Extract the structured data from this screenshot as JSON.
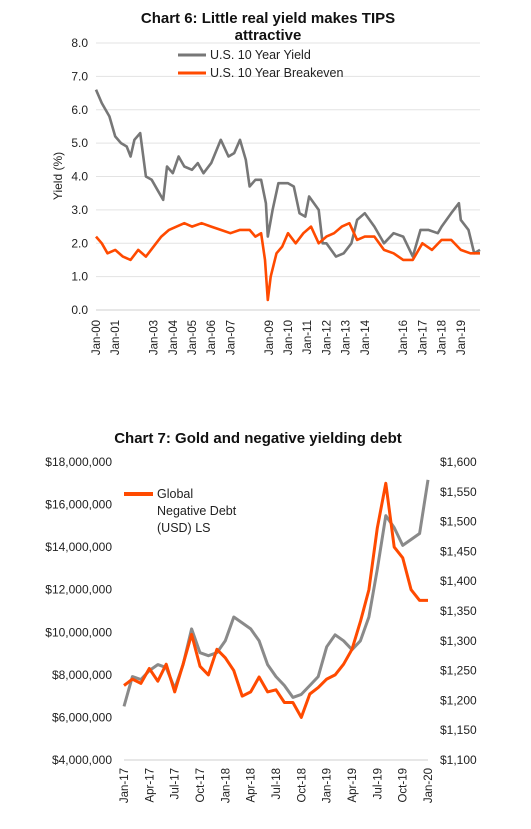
{
  "chart_data": [
    {
      "type": "line",
      "title": "Chart 6: Little real yield makes TIPS attractive",
      "title_lines": [
        "Chart 6: Little real yield makes TIPS",
        "attractive"
      ],
      "ylabel": "Yield (%)",
      "ylim": [
        0,
        8
      ],
      "yticks": [
        "0.0",
        "1.0",
        "2.0",
        "3.0",
        "4.0",
        "5.0",
        "6.0",
        "7.0",
        "8.0"
      ],
      "xlim": [
        2000.0,
        2020.0
      ],
      "xticks": [
        "Jan-00",
        "Jan-01",
        "Jan-03",
        "Jan-04",
        "Jan-05",
        "Jan-06",
        "Jan-07",
        "Jan-09",
        "Jan-10",
        "Jan-11",
        "Jan-12",
        "Jan-13",
        "Jan-14",
        "Jan-16",
        "Jan-17",
        "Jan-18",
        "Jan-19"
      ],
      "xtick_years": [
        2000,
        2001,
        2003,
        2004,
        2005,
        2006,
        2007,
        2009,
        2010,
        2011,
        2012,
        2013,
        2014,
        2016,
        2017,
        2018,
        2019
      ],
      "legend_position": "top-center",
      "grid": "horizontal",
      "series": [
        {
          "name": "U.S. 10 Year Yield",
          "color": "#777777",
          "x": [
            2000.0,
            2000.3,
            2000.7,
            2001.0,
            2001.3,
            2001.6,
            2001.8,
            2002.0,
            2002.3,
            2002.6,
            2002.9,
            2003.2,
            2003.5,
            2003.7,
            2004.0,
            2004.3,
            2004.6,
            2005.0,
            2005.3,
            2005.6,
            2006.0,
            2006.5,
            2006.9,
            2007.2,
            2007.5,
            2007.8,
            2008.0,
            2008.3,
            2008.6,
            2008.85,
            2008.95,
            2009.2,
            2009.5,
            2010.0,
            2010.3,
            2010.6,
            2010.9,
            2011.1,
            2011.6,
            2011.8,
            2012.0,
            2012.5,
            2012.9,
            2013.3,
            2013.6,
            2014.0,
            2014.5,
            2015.0,
            2015.5,
            2016.0,
            2016.5,
            2016.9,
            2017.3,
            2017.8,
            2018.0,
            2018.5,
            2018.9,
            2019.0,
            2019.4,
            2019.7,
            2020.0
          ],
          "y": [
            6.6,
            6.2,
            5.8,
            5.2,
            5.0,
            4.9,
            4.6,
            5.1,
            5.3,
            4.0,
            3.9,
            3.6,
            3.3,
            4.3,
            4.1,
            4.6,
            4.3,
            4.2,
            4.4,
            4.1,
            4.4,
            5.1,
            4.6,
            4.7,
            5.1,
            4.5,
            3.7,
            3.9,
            3.9,
            3.2,
            2.2,
            3.0,
            3.8,
            3.8,
            3.7,
            2.9,
            2.8,
            3.4,
            3.0,
            2.0,
            2.0,
            1.6,
            1.7,
            2.0,
            2.7,
            2.9,
            2.5,
            2.0,
            2.3,
            2.2,
            1.6,
            2.4,
            2.4,
            2.3,
            2.5,
            2.9,
            3.2,
            2.7,
            2.4,
            1.7,
            1.8
          ]
        },
        {
          "name": "U.S. 10 Year Breakeven",
          "color": "#ff4a00",
          "x": [
            2000.0,
            2000.3,
            2000.6,
            2001.0,
            2001.4,
            2001.8,
            2002.2,
            2002.6,
            2003.0,
            2003.4,
            2003.8,
            2004.2,
            2004.6,
            2005.0,
            2005.5,
            2006.0,
            2006.5,
            2007.0,
            2007.5,
            2008.0,
            2008.3,
            2008.6,
            2008.8,
            2008.95,
            2009.1,
            2009.4,
            2009.7,
            2010.0,
            2010.4,
            2010.8,
            2011.2,
            2011.6,
            2012.0,
            2012.4,
            2012.8,
            2013.2,
            2013.6,
            2014.0,
            2014.5,
            2015.0,
            2015.5,
            2016.0,
            2016.5,
            2017.0,
            2017.5,
            2018.0,
            2018.5,
            2019.0,
            2019.5,
            2020.0
          ],
          "y": [
            2.2,
            2.0,
            1.7,
            1.8,
            1.6,
            1.5,
            1.8,
            1.6,
            1.9,
            2.2,
            2.4,
            2.5,
            2.6,
            2.5,
            2.6,
            2.5,
            2.4,
            2.3,
            2.4,
            2.4,
            2.2,
            2.3,
            1.5,
            0.3,
            1.0,
            1.7,
            1.9,
            2.3,
            2.0,
            2.3,
            2.5,
            2.0,
            2.2,
            2.3,
            2.5,
            2.6,
            2.1,
            2.2,
            2.2,
            1.8,
            1.7,
            1.5,
            1.5,
            2.0,
            1.8,
            2.1,
            2.1,
            1.8,
            1.7,
            1.7
          ]
        }
      ]
    },
    {
      "type": "line",
      "title": "Chart 7: Gold and negative yielding debt",
      "ylim_left": [
        4000000,
        18000000
      ],
      "yticks_left": [
        "$4,000,000",
        "$6,000,000",
        "$8,000,000",
        "$10,000,000",
        "$12,000,000",
        "$14,000,000",
        "$16,000,000",
        "$18,000,000"
      ],
      "ylim_right": [
        1100,
        1600
      ],
      "yticks_right": [
        "$1,100",
        "$1,150",
        "$1,200",
        "$1,250",
        "$1,300",
        "$1,350",
        "$1,400",
        "$1,450",
        "$1,500",
        "$1,550",
        "$1,600"
      ],
      "xlim": [
        0,
        36
      ],
      "xticks": [
        "Jan-17",
        "Apr-17",
        "Jul-17",
        "Oct-17",
        "Jan-18",
        "Apr-18",
        "Jul-18",
        "Oct-18",
        "Jan-19",
        "Apr-19",
        "Jul-19",
        "Oct-19",
        "Jan-20"
      ],
      "legend_position": "top-left",
      "legend_lines": [
        "Global",
        "Negative Debt",
        "(USD) LS"
      ],
      "series": [
        {
          "name": "Global Negative Debt (USD) LS",
          "axis": "left",
          "color": "#ff4a00",
          "x": [
            0,
            1,
            2,
            3,
            4,
            5,
            6,
            7,
            8,
            9,
            10,
            11,
            12,
            13,
            14,
            15,
            16,
            17,
            18,
            19,
            20,
            21,
            22,
            23,
            24,
            25,
            26,
            27,
            28,
            29,
            30,
            31,
            32,
            33,
            34,
            35,
            36
          ],
          "y": [
            7500000,
            7800000,
            7600000,
            8300000,
            7700000,
            8500000,
            7200000,
            8500000,
            9900000,
            8400000,
            8000000,
            9200000,
            8800000,
            8200000,
            7000000,
            7200000,
            7900000,
            7200000,
            7300000,
            6700000,
            6700000,
            6000000,
            7100000,
            7400000,
            7800000,
            8000000,
            8500000,
            9200000,
            10500000,
            12000000,
            14900000,
            17000000,
            14000000,
            13500000,
            12000000,
            11500000,
            11500000
          ]
        },
        {
          "name": "Gold",
          "axis": "right",
          "color": "#8a8a8a",
          "x": [
            0,
            1,
            2,
            3,
            4,
            5,
            6,
            7,
            8,
            9,
            10,
            11,
            12,
            13,
            14,
            15,
            16,
            17,
            18,
            19,
            20,
            21,
            22,
            23,
            24,
            25,
            26,
            27,
            28,
            29,
            30,
            31,
            32,
            33,
            34,
            35,
            36
          ],
          "y": [
            1190,
            1240,
            1235,
            1250,
            1260,
            1255,
            1220,
            1260,
            1320,
            1280,
            1275,
            1280,
            1300,
            1340,
            1330,
            1320,
            1300,
            1260,
            1240,
            1225,
            1205,
            1210,
            1225,
            1240,
            1290,
            1310,
            1300,
            1285,
            1300,
            1340,
            1420,
            1510,
            1490,
            1460,
            1470,
            1480,
            1570
          ]
        }
      ]
    }
  ]
}
